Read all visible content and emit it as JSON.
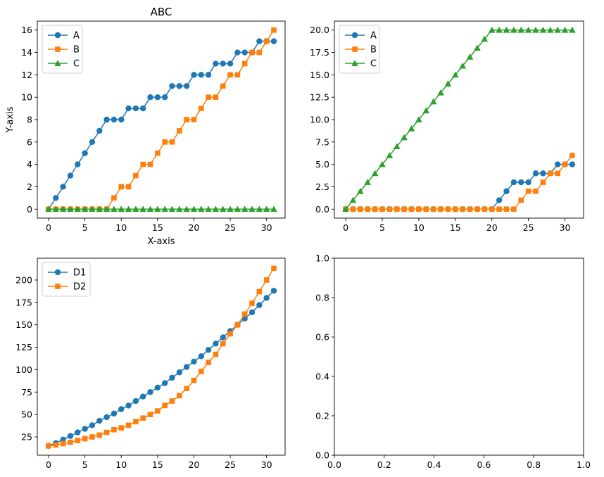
{
  "figure": {
    "colors": {
      "A": "#1f77b4",
      "B": "#ff7f0e",
      "C": "#2ca02c"
    }
  },
  "chart_data": [
    {
      "type": "line",
      "title": "ABC",
      "xlabel": "X-axis",
      "ylabel": "Y-axis",
      "xlim": [
        -1.55,
        32.55
      ],
      "ylim": [
        -0.8,
        16.8
      ],
      "xticks": [
        0,
        5,
        10,
        15,
        20,
        25,
        30
      ],
      "yticks": [
        0,
        2,
        4,
        6,
        8,
        10,
        12,
        14,
        16
      ],
      "legend": "upper-left",
      "x": [
        0,
        1,
        2,
        3,
        4,
        5,
        6,
        7,
        8,
        9,
        10,
        11,
        12,
        13,
        14,
        15,
        16,
        17,
        18,
        19,
        20,
        21,
        22,
        23,
        24,
        25,
        26,
        27,
        28,
        29,
        30,
        31
      ],
      "series": [
        {
          "name": "A",
          "marker": "circle",
          "color": "#1f77b4",
          "values": [
            0,
            1,
            2,
            3,
            4,
            5,
            6,
            7,
            8,
            8,
            8,
            9,
            9,
            9,
            10,
            10,
            10,
            11,
            11,
            11,
            12,
            12,
            12,
            13,
            13,
            13,
            14,
            14,
            14,
            15,
            15,
            15
          ]
        },
        {
          "name": "B",
          "marker": "square",
          "color": "#ff7f0e",
          "values": [
            0,
            0,
            0,
            0,
            0,
            0,
            0,
            0,
            0,
            1,
            2,
            2,
            3,
            4,
            4,
            5,
            6,
            6,
            7,
            8,
            8,
            9,
            10,
            10,
            11,
            12,
            12,
            13,
            14,
            14,
            15,
            16
          ]
        },
        {
          "name": "C",
          "marker": "triangle",
          "color": "#2ca02c",
          "values": [
            0,
            0,
            0,
            0,
            0,
            0,
            0,
            0,
            0,
            0,
            0,
            0,
            0,
            0,
            0,
            0,
            0,
            0,
            0,
            0,
            0,
            0,
            0,
            0,
            0,
            0,
            0,
            0,
            0,
            0,
            0,
            0
          ]
        }
      ]
    },
    {
      "type": "line",
      "xlim": [
        -1.55,
        32.55
      ],
      "ylim": [
        -1.0,
        21.0
      ],
      "xticks": [
        0,
        5,
        10,
        15,
        20,
        25,
        30
      ],
      "yticks": [
        0.0,
        2.5,
        5.0,
        7.5,
        10.0,
        12.5,
        15.0,
        17.5,
        20.0
      ],
      "ytick_labels": [
        "0.0",
        "2.5",
        "5.0",
        "7.5",
        "10.0",
        "12.5",
        "15.0",
        "17.5",
        "20.0"
      ],
      "legend": "upper-left",
      "x": [
        0,
        1,
        2,
        3,
        4,
        5,
        6,
        7,
        8,
        9,
        10,
        11,
        12,
        13,
        14,
        15,
        16,
        17,
        18,
        19,
        20,
        21,
        22,
        23,
        24,
        25,
        26,
        27,
        28,
        29,
        30,
        31
      ],
      "series": [
        {
          "name": "A",
          "marker": "circle",
          "color": "#1f77b4",
          "values": [
            0,
            0,
            0,
            0,
            0,
            0,
            0,
            0,
            0,
            0,
            0,
            0,
            0,
            0,
            0,
            0,
            0,
            0,
            0,
            0,
            0,
            1,
            2,
            3,
            3,
            3,
            4,
            4,
            4,
            5,
            5,
            5
          ]
        },
        {
          "name": "B",
          "marker": "square",
          "color": "#ff7f0e",
          "values": [
            0,
            0,
            0,
            0,
            0,
            0,
            0,
            0,
            0,
            0,
            0,
            0,
            0,
            0,
            0,
            0,
            0,
            0,
            0,
            0,
            0,
            0,
            0,
            0,
            1,
            2,
            2,
            3,
            4,
            4,
            5,
            6
          ]
        },
        {
          "name": "C",
          "marker": "triangle",
          "color": "#2ca02c",
          "values": [
            0,
            1,
            2,
            3,
            4,
            5,
            6,
            7,
            8,
            9,
            10,
            11,
            12,
            13,
            14,
            15,
            16,
            17,
            18,
            19,
            20,
            20,
            20,
            20,
            20,
            20,
            20,
            20,
            20,
            20,
            20,
            20
          ]
        }
      ]
    },
    {
      "type": "line",
      "xlim": [
        -1.55,
        32.55
      ],
      "ylim": [
        4.6,
        224.3
      ],
      "xticks": [
        0,
        5,
        10,
        15,
        20,
        25,
        30
      ],
      "yticks": [
        25,
        50,
        75,
        100,
        125,
        150,
        175,
        200
      ],
      "legend": "upper-left",
      "x": [
        0,
        1,
        2,
        3,
        4,
        5,
        6,
        7,
        8,
        9,
        10,
        11,
        12,
        13,
        14,
        15,
        16,
        17,
        18,
        19,
        20,
        21,
        22,
        23,
        24,
        25,
        26,
        27,
        28,
        29,
        30,
        31
      ],
      "series": [
        {
          "name": "D1",
          "marker": "circle",
          "color": "#1f77b4",
          "values": [
            15,
            18,
            22,
            26,
            30,
            34,
            38,
            43,
            47,
            51,
            56,
            60,
            65,
            70,
            75,
            80,
            85,
            91,
            97,
            103,
            109,
            115,
            122,
            129,
            136,
            143,
            150,
            157,
            164,
            172,
            180,
            188
          ]
        },
        {
          "name": "D2",
          "marker": "square",
          "color": "#ff7f0e",
          "values": [
            15,
            16,
            17.5,
            19,
            21,
            23,
            25,
            27,
            30,
            33,
            35,
            38,
            42,
            46,
            50,
            54,
            60,
            65,
            71,
            79,
            88,
            98,
            108,
            117,
            129,
            140,
            150,
            162,
            174,
            187,
            200,
            213
          ]
        }
      ]
    },
    {
      "type": "line",
      "xlim": [
        0,
        1
      ],
      "ylim": [
        0,
        1
      ],
      "xticks": [
        0.0,
        0.2,
        0.4,
        0.6,
        0.8,
        1.0
      ],
      "xtick_labels": [
        "0.0",
        "0.2",
        "0.4",
        "0.6",
        "0.8",
        "1.0"
      ],
      "yticks": [
        0.0,
        0.2,
        0.4,
        0.6,
        0.8,
        1.0
      ],
      "ytick_labels": [
        "0.0",
        "0.2",
        "0.4",
        "0.6",
        "0.8",
        "1.0"
      ],
      "series": []
    }
  ]
}
